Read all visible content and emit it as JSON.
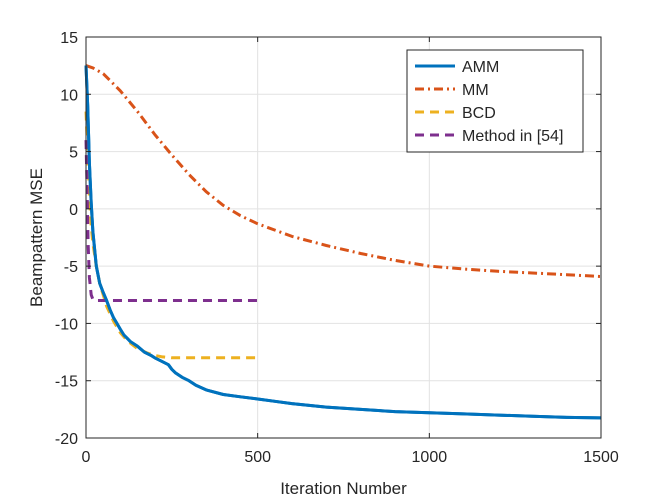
{
  "chart_data": {
    "type": "line",
    "title": "",
    "xlabel": "Iteration Number",
    "ylabel": "Beampattern MSE",
    "xlim": [
      0,
      1500
    ],
    "ylim": [
      -20,
      15
    ],
    "xticks": [
      0,
      500,
      1000,
      1500
    ],
    "yticks": [
      -20,
      -15,
      -10,
      -5,
      0,
      5,
      10,
      15
    ],
    "grid": true,
    "legend_position": "top-right",
    "series": [
      {
        "name": "AMM",
        "color": "#0072BD",
        "style": "solid",
        "x": [
          0,
          5,
          10,
          15,
          20,
          25,
          30,
          40,
          50,
          60,
          70,
          80,
          90,
          100,
          110,
          120,
          130,
          150,
          170,
          190,
          200,
          220,
          240,
          250,
          260,
          280,
          300,
          320,
          350,
          400,
          450,
          500,
          550,
          600,
          700,
          800,
          900,
          1000,
          1100,
          1200,
          1300,
          1400,
          1500
        ],
        "y": [
          12.5,
          9,
          4,
          0.5,
          -2,
          -3.5,
          -5,
          -6.5,
          -7.3,
          -8,
          -8.8,
          -9.5,
          -10,
          -10.5,
          -11,
          -11.3,
          -11.6,
          -12,
          -12.5,
          -12.8,
          -13,
          -13.3,
          -13.6,
          -14,
          -14.3,
          -14.7,
          -15,
          -15.4,
          -15.8,
          -16.2,
          -16.4,
          -16.6,
          -16.8,
          -17,
          -17.3,
          -17.5,
          -17.7,
          -17.8,
          -17.9,
          -18,
          -18.1,
          -18.2,
          -18.25
        ]
      },
      {
        "name": "MM",
        "color": "#D95319",
        "style": "dashdot",
        "x": [
          0,
          20,
          50,
          100,
          150,
          200,
          250,
          300,
          350,
          400,
          450,
          500,
          600,
          700,
          800,
          900,
          1000,
          1100,
          1200,
          1300,
          1400,
          1500
        ],
        "y": [
          12.5,
          12.3,
          11.8,
          10.3,
          8.5,
          6.5,
          4.7,
          3,
          1.5,
          0.3,
          -0.6,
          -1.3,
          -2.4,
          -3.2,
          -3.9,
          -4.5,
          -5,
          -5.25,
          -5.45,
          -5.6,
          -5.75,
          -5.9
        ]
      },
      {
        "name": "BCD",
        "color": "#EDB120",
        "style": "dashed",
        "x": [
          0,
          5,
          10,
          15,
          20,
          25,
          30,
          40,
          50,
          60,
          80,
          100,
          120,
          150,
          180,
          200,
          220,
          250,
          300,
          400,
          500
        ],
        "y": [
          8.5,
          5,
          1,
          -1.5,
          -3,
          -4,
          -5,
          -6.5,
          -7.5,
          -8.5,
          -9.8,
          -10.8,
          -11.5,
          -12.2,
          -12.6,
          -12.8,
          -12.9,
          -13,
          -13,
          -13,
          -13
        ]
      },
      {
        "name": "Method in [54]",
        "color": "#7E2F8E",
        "style": "dashed",
        "x": [
          0,
          3,
          6,
          10,
          15,
          20,
          30,
          50,
          100,
          200,
          300,
          400,
          500
        ],
        "y": [
          6,
          2,
          -3,
          -6,
          -7.5,
          -7.9,
          -8,
          -8,
          -8,
          -8,
          -8,
          -8,
          -8
        ]
      }
    ]
  }
}
